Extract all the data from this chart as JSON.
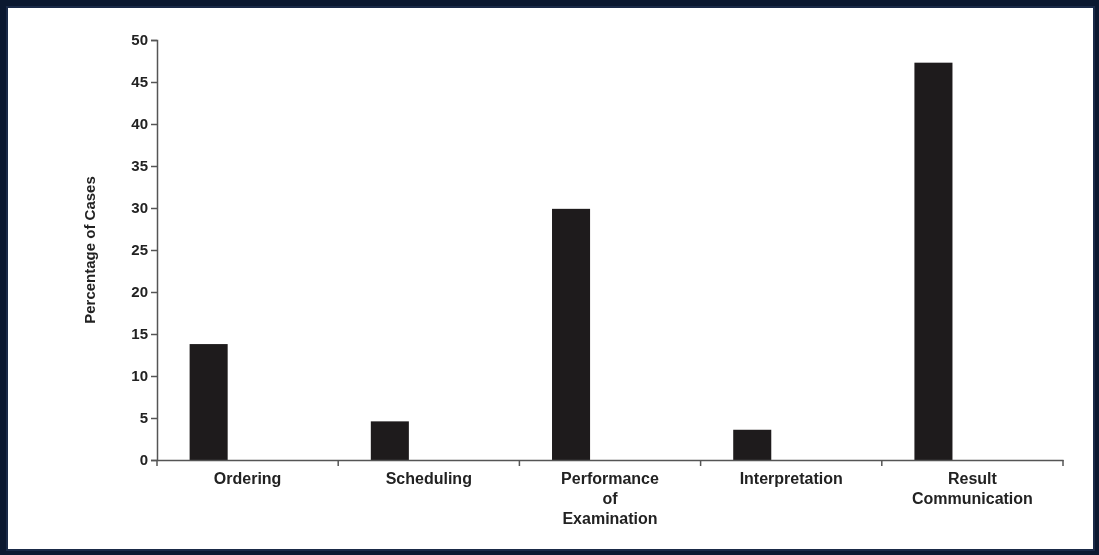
{
  "chart_data": {
    "type": "bar",
    "ylabel": "Percentage of Cases",
    "categories": [
      "Ordering",
      "Scheduling",
      "Performance of Examination",
      "Interpretation",
      "Result Communication"
    ],
    "values": [
      13.8,
      4.6,
      29.9,
      3.6,
      47.3
    ],
    "color": "#1e1b1c",
    "ylim": [
      0,
      50
    ],
    "yticks": [
      0,
      5,
      10,
      15,
      20,
      25,
      30,
      35,
      40,
      45,
      50
    ],
    "grid": false
  }
}
